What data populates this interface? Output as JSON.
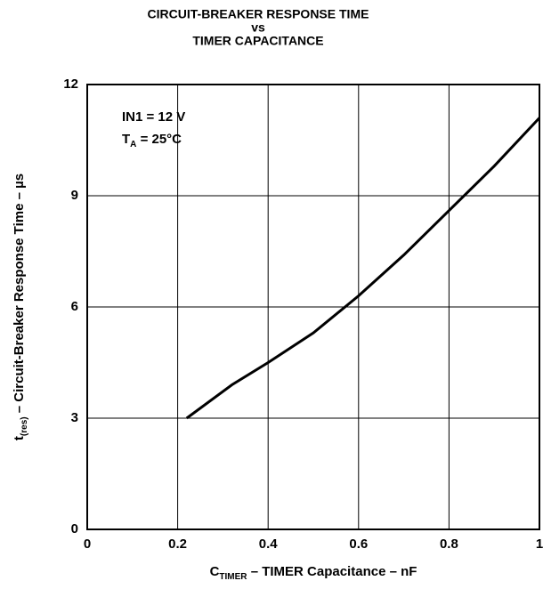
{
  "chart_data": {
    "type": "line",
    "title": [
      "CIRCUIT-BREAKER RESPONSE TIME",
      "vs",
      "TIMER CAPACITANCE"
    ],
    "x_label": {
      "main": "C",
      "sub": "TIMER",
      "rest": " – TIMER Capacitance – nF"
    },
    "y_label": {
      "main": "t",
      "sub": "(res)",
      "rest": " – Circuit-Breaker Response Time – µs"
    },
    "annotations": [
      {
        "main": "IN1 = 12 V",
        "sub": "",
        "rest": ""
      },
      {
        "main": "T",
        "sub": "A",
        "rest": " = 25°C"
      }
    ],
    "x": [
      0.22,
      0.32,
      0.4,
      0.5,
      0.6,
      0.7,
      0.8,
      0.9,
      1.0
    ],
    "series": [
      {
        "name": "t(res)",
        "color": "#000000",
        "values": [
          3.0,
          3.9,
          4.5,
          5.3,
          6.3,
          7.4,
          8.6,
          9.8,
          11.1
        ]
      }
    ],
    "xlim": [
      0,
      1
    ],
    "xticks": [
      0,
      0.2,
      0.4,
      0.6,
      0.8,
      1
    ],
    "ylim": [
      0,
      12
    ],
    "yticks": [
      0,
      3,
      6,
      9,
      12
    ],
    "grid": true
  }
}
